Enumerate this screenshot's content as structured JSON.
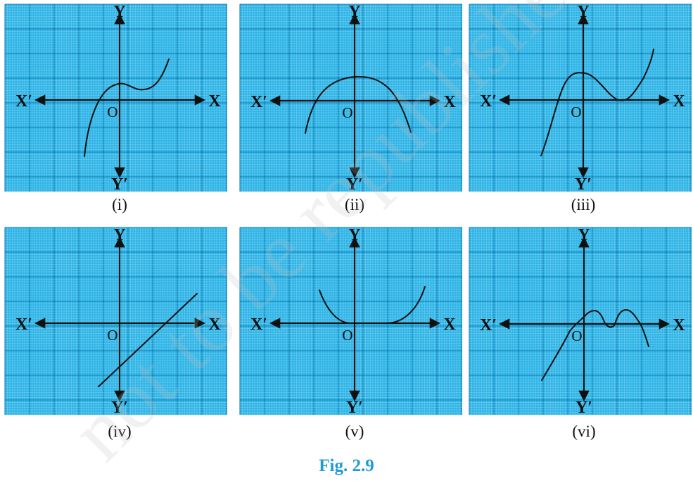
{
  "figure": {
    "caption": "Fig. 2.9",
    "watermark_text": "not to be republished © NCERT",
    "colors": {
      "grid_background": "#2cb3e6",
      "grid_minor": "#7fd2f0",
      "grid_major": "#177fb2",
      "axis": "#111111",
      "curve": "#111111",
      "caption": "#1f9ad6"
    },
    "axis_labels": {
      "x": "X",
      "x_neg": "X′",
      "y": "Y",
      "y_neg": "Y′",
      "origin": "O"
    },
    "panels": [
      {
        "label": "(i)"
      },
      {
        "label": "(ii)"
      },
      {
        "label": "(iii)"
      },
      {
        "label": "(iv)"
      },
      {
        "label": "(v)"
      },
      {
        "label": "(vi)"
      }
    ]
  }
}
